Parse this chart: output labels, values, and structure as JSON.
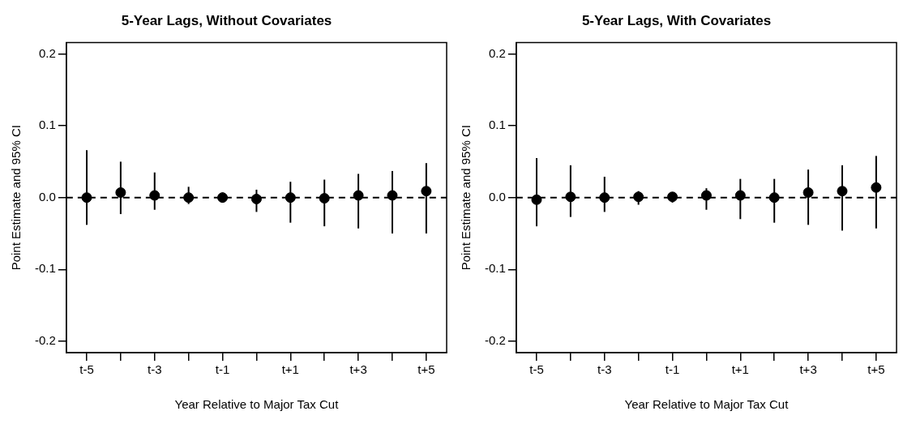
{
  "chart_data": [
    {
      "type": "scatter",
      "title": "5-Year Lags, Without Covariates",
      "xlabel": "Year Relative to Major Tax Cut",
      "ylabel": "Point Estimate and 95% CI",
      "categories": [
        "t-5",
        null,
        "t-3",
        null,
        "t-1",
        null,
        "t+1",
        null,
        "t+3",
        null,
        "t+5"
      ],
      "color": "#000000",
      "marker": "circle",
      "values": [
        0.0,
        0.007,
        0.003,
        0.0,
        0.0,
        -0.002,
        0.0,
        -0.001,
        0.003,
        0.003,
        0.009
      ],
      "errors": [
        [
          -0.038,
          0.066
        ],
        [
          -0.023,
          0.05
        ],
        [
          -0.017,
          0.035
        ],
        [
          -0.009,
          0.015
        ],
        [
          -0.007,
          0.007
        ],
        [
          -0.02,
          0.011
        ],
        [
          -0.035,
          0.022
        ],
        [
          -0.04,
          0.025
        ],
        [
          -0.043,
          0.033
        ],
        [
          -0.05,
          0.037
        ],
        [
          -0.05,
          0.048
        ]
      ],
      "ylim": [
        -0.216,
        0.216
      ],
      "yticks": [
        {
          "value": -0.2,
          "label": "-0.2"
        },
        {
          "value": -0.1,
          "label": "-0.1"
        },
        {
          "value": 0,
          "label": "0.0"
        },
        {
          "value": 0.1,
          "label": "0.1"
        },
        {
          "value": 0.2,
          "label": "0.2"
        }
      ],
      "ref_lines": [
        {
          "axis": "y",
          "value": 0,
          "line_style": "dashed",
          "color": "#000000"
        }
      ]
    },
    {
      "type": "scatter",
      "title": "5-Year Lags, With Covariates",
      "xlabel": "Year Relative to Major Tax Cut",
      "ylabel": "Point Estimate and 95% CI",
      "categories": [
        "t-5",
        null,
        "t-3",
        null,
        "t-1",
        null,
        "t+1",
        null,
        "t+3",
        null,
        "t+5"
      ],
      "color": "#000000",
      "marker": "circle",
      "values": [
        -0.003,
        0.001,
        0.0,
        0.001,
        0.001,
        0.003,
        0.003,
        0.0,
        0.007,
        0.009,
        0.014
      ],
      "errors": [
        [
          -0.04,
          0.055
        ],
        [
          -0.027,
          0.045
        ],
        [
          -0.02,
          0.029
        ],
        [
          -0.01,
          0.009
        ],
        [
          -0.007,
          0.007
        ],
        [
          -0.017,
          0.013
        ],
        [
          -0.03,
          0.026
        ],
        [
          -0.035,
          0.026
        ],
        [
          -0.038,
          0.039
        ],
        [
          -0.046,
          0.045
        ],
        [
          -0.043,
          0.058
        ]
      ],
      "ylim": [
        -0.216,
        0.216
      ],
      "yticks": [
        {
          "value": -0.2,
          "label": "-0.2"
        },
        {
          "value": -0.1,
          "label": "-0.1"
        },
        {
          "value": 0,
          "label": "0.0"
        },
        {
          "value": 0.1,
          "label": "0.1"
        },
        {
          "value": 0.2,
          "label": "0.2"
        }
      ],
      "ref_lines": [
        {
          "axis": "y",
          "value": 0,
          "line_style": "dashed",
          "color": "#000000"
        }
      ]
    }
  ]
}
